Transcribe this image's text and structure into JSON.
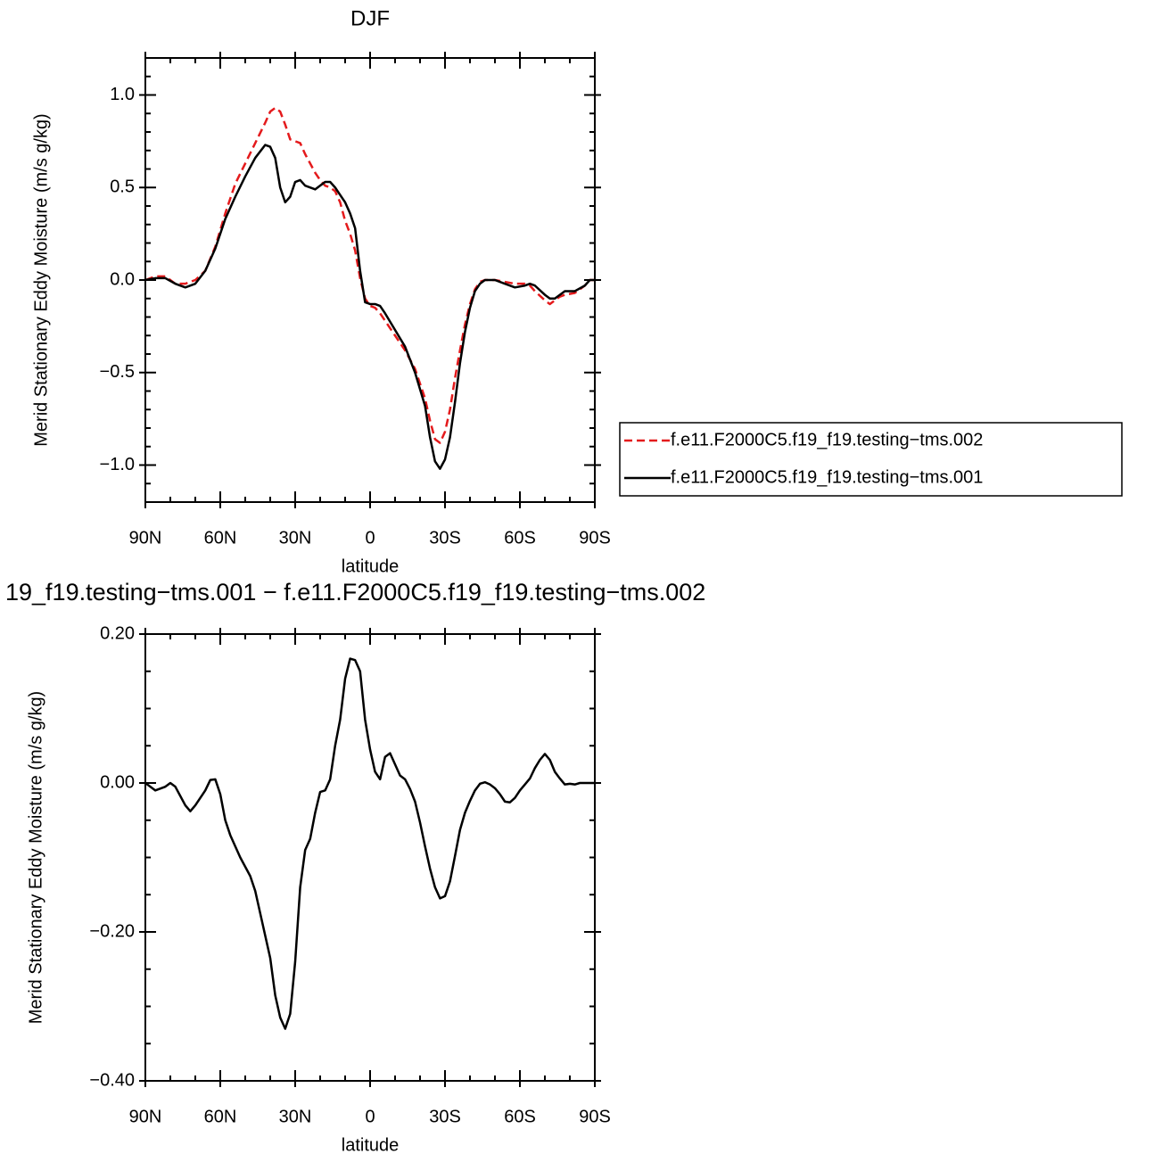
{
  "chart_data": [
    {
      "type": "line",
      "title": "DJF",
      "y_label": "Merid Stationary Eddy Moisture (m/s g/kg)",
      "x_label": "latitude",
      "x": [
        90,
        86,
        82,
        78,
        74,
        70,
        66,
        62,
        58,
        54,
        50,
        46,
        42,
        40,
        38,
        36,
        34,
        32,
        30,
        28,
        26,
        22,
        20,
        18,
        16,
        14,
        12,
        10,
        8,
        6,
        4,
        2,
        0,
        -2,
        -4,
        -6,
        -10,
        -14,
        -18,
        -22,
        -24,
        -26,
        -28,
        -30,
        -32,
        -34,
        -36,
        -38,
        -40,
        -42,
        -44,
        -46,
        -50,
        -54,
        -58,
        -62,
        -64,
        -66,
        -70,
        -72,
        -74,
        -76,
        -78,
        -82,
        -86,
        -88,
        -90
      ],
      "series": [
        {
          "name": "f.e11.F2000C5.f19_f19.testing−tms.002",
          "color": "#e41a1c",
          "linestyle": "dashed",
          "values": [
            0,
            0.02,
            0.02,
            -0.02,
            -0.02,
            0,
            0.05,
            0.18,
            0.36,
            0.52,
            0.63,
            0.74,
            0.85,
            0.91,
            0.93,
            0.91,
            0.84,
            0.76,
            0.75,
            0.74,
            0.68,
            0.58,
            0.54,
            0.51,
            0.5,
            0.48,
            0.42,
            0.32,
            0.25,
            0.16,
            0.01,
            -0.1,
            -0.14,
            -0.15,
            -0.18,
            -0.22,
            -0.3,
            -0.38,
            -0.48,
            -0.64,
            -0.76,
            -0.86,
            -0.88,
            -0.82,
            -0.7,
            -0.53,
            -0.38,
            -0.24,
            -0.13,
            -0.05,
            -0.01,
            0,
            0,
            -0.01,
            -0.02,
            -0.02,
            -0.03,
            -0.06,
            -0.11,
            -0.13,
            -0.11,
            -0.09,
            -0.08,
            -0.07,
            -0.03,
            0,
            0
          ]
        },
        {
          "name": "f.e11.F2000C5.f19_f19.testing−tms.001",
          "color": "#000000",
          "linestyle": "solid",
          "values": [
            0,
            0.01,
            0.01,
            -0.02,
            -0.04,
            -0.02,
            0.05,
            0.17,
            0.33,
            0.45,
            0.56,
            0.66,
            0.73,
            0.72,
            0.66,
            0.5,
            0.42,
            0.45,
            0.53,
            0.54,
            0.51,
            0.49,
            0.51,
            0.53,
            0.53,
            0.5,
            0.46,
            0.42,
            0.36,
            0.28,
            0.05,
            -0.12,
            -0.13,
            -0.13,
            -0.14,
            -0.18,
            -0.27,
            -0.36,
            -0.5,
            -0.68,
            -0.85,
            -0.98,
            -1.02,
            -0.97,
            -0.85,
            -0.66,
            -0.45,
            -0.28,
            -0.15,
            -0.06,
            -0.02,
            0,
            0,
            -0.02,
            -0.04,
            -0.03,
            -0.02,
            -0.03,
            -0.08,
            -0.1,
            -0.1,
            -0.08,
            -0.06,
            -0.06,
            -0.03,
            0,
            0
          ]
        }
      ],
      "xlim": [
        90,
        -90
      ],
      "xticks": [
        {
          "value": 90,
          "label": "90N"
        },
        {
          "value": 60,
          "label": "60N"
        },
        {
          "value": 30,
          "label": "30N"
        },
        0,
        {
          "value": -30,
          "label": "30S"
        },
        {
          "value": -60,
          "label": "60S"
        },
        {
          "value": -90,
          "label": "90S"
        }
      ],
      "xminorticks": [
        80,
        70,
        50,
        40,
        20,
        10,
        -10,
        -20,
        -40,
        -50,
        -70,
        -80
      ],
      "ylim": [
        -1.2,
        1.2
      ],
      "yticks": [
        {
          "value": -1,
          "label": "−1.0"
        },
        {
          "value": -0.5,
          "label": "−0.5"
        },
        {
          "value": 0,
          "label": "0.0"
        },
        {
          "value": 0.5,
          "label": "0.5"
        },
        {
          "value": 1,
          "label": "1.0"
        }
      ],
      "yminorticks": [
        -1.1,
        -0.9,
        -0.8,
        -0.7,
        -0.6,
        -0.4,
        -0.3,
        -0.2,
        -0.1,
        0.1,
        0.2,
        0.3,
        0.4,
        0.6,
        0.7,
        0.8,
        0.9,
        1.1
      ],
      "legend": "right"
    },
    {
      "type": "line",
      "title": "19_f19.testing−tms.001 − f.e11.F2000C5.f19_f19.testing−tms.002",
      "y_label": "Merid Stationary Eddy Moisture (m/s g/kg)",
      "x_label": "latitude",
      "x": [
        90,
        86,
        82,
        80,
        78,
        74,
        72,
        70,
        66,
        64,
        62,
        60,
        58,
        56,
        52,
        48,
        46,
        44,
        42,
        40,
        38,
        36,
        34,
        32,
        30,
        28,
        26,
        24,
        22,
        20,
        18,
        16,
        14,
        12,
        10,
        8,
        6,
        4,
        2,
        0,
        -2,
        -4,
        -6,
        -8,
        -10,
        -12,
        -14,
        -16,
        -18,
        -20,
        -22,
        -24,
        -26,
        -28,
        -30,
        -32,
        -34,
        -36,
        -38,
        -40,
        -42,
        -44,
        -46,
        -48,
        -50,
        -52,
        -54,
        -56,
        -58,
        -60,
        -62,
        -64,
        -66,
        -68,
        -70,
        -72,
        -74,
        -76,
        -78,
        -80,
        -82,
        -84,
        -90
      ],
      "series": [
        {
          "color": "#000000",
          "linestyle": "solid",
          "values": [
            0,
            -0.01,
            -0.005,
            0,
            -0.005,
            -0.03,
            -0.038,
            -0.03,
            -0.01,
            0.004,
            0.005,
            -0.015,
            -0.05,
            -0.07,
            -0.1,
            -0.125,
            -0.145,
            -0.175,
            -0.205,
            -0.235,
            -0.285,
            -0.315,
            -0.33,
            -0.31,
            -0.24,
            -0.14,
            -0.09,
            -0.075,
            -0.04,
            -0.012,
            -0.01,
            0.005,
            0.05,
            0.085,
            0.14,
            0.167,
            0.165,
            0.15,
            0.085,
            0.045,
            0.015,
            0.005,
            0.035,
            0.04,
            0.025,
            0.01,
            0.005,
            -0.008,
            -0.025,
            -0.053,
            -0.085,
            -0.115,
            -0.14,
            -0.155,
            -0.152,
            -0.132,
            -0.098,
            -0.063,
            -0.04,
            -0.024,
            -0.01,
            -0.001,
            0.001,
            -0.002,
            -0.007,
            -0.015,
            -0.025,
            -0.026,
            -0.02,
            -0.01,
            -0.002,
            0.006,
            0.02,
            0.031,
            0.039,
            0.031,
            0.015,
            0.006,
            -0.002,
            -0.001,
            -0.002,
            0,
            0
          ]
        }
      ],
      "xlim": [
        90,
        -90
      ],
      "xticks": [
        {
          "value": 90,
          "label": "90N"
        },
        {
          "value": 60,
          "label": "60N"
        },
        {
          "value": 30,
          "label": "30N"
        },
        0,
        {
          "value": -30,
          "label": "30S"
        },
        {
          "value": -60,
          "label": "60S"
        },
        {
          "value": -90,
          "label": "90S"
        }
      ],
      "xminorticks": [
        80,
        70,
        50,
        40,
        20,
        10,
        -10,
        -20,
        -40,
        -50,
        -70,
        -80
      ],
      "ylim": [
        -0.4,
        0.2
      ],
      "yticks": [
        {
          "value": -0.4,
          "label": "−0.40"
        },
        {
          "value": -0.2,
          "label": "−0.20"
        },
        {
          "value": 0,
          "label": "0.00"
        },
        {
          "value": 0.2,
          "label": "0.20"
        }
      ],
      "yminorticks": [
        -0.35,
        -0.3,
        -0.25,
        -0.15,
        -0.1,
        -0.05,
        0.05,
        0.1,
        0.15
      ]
    }
  ]
}
